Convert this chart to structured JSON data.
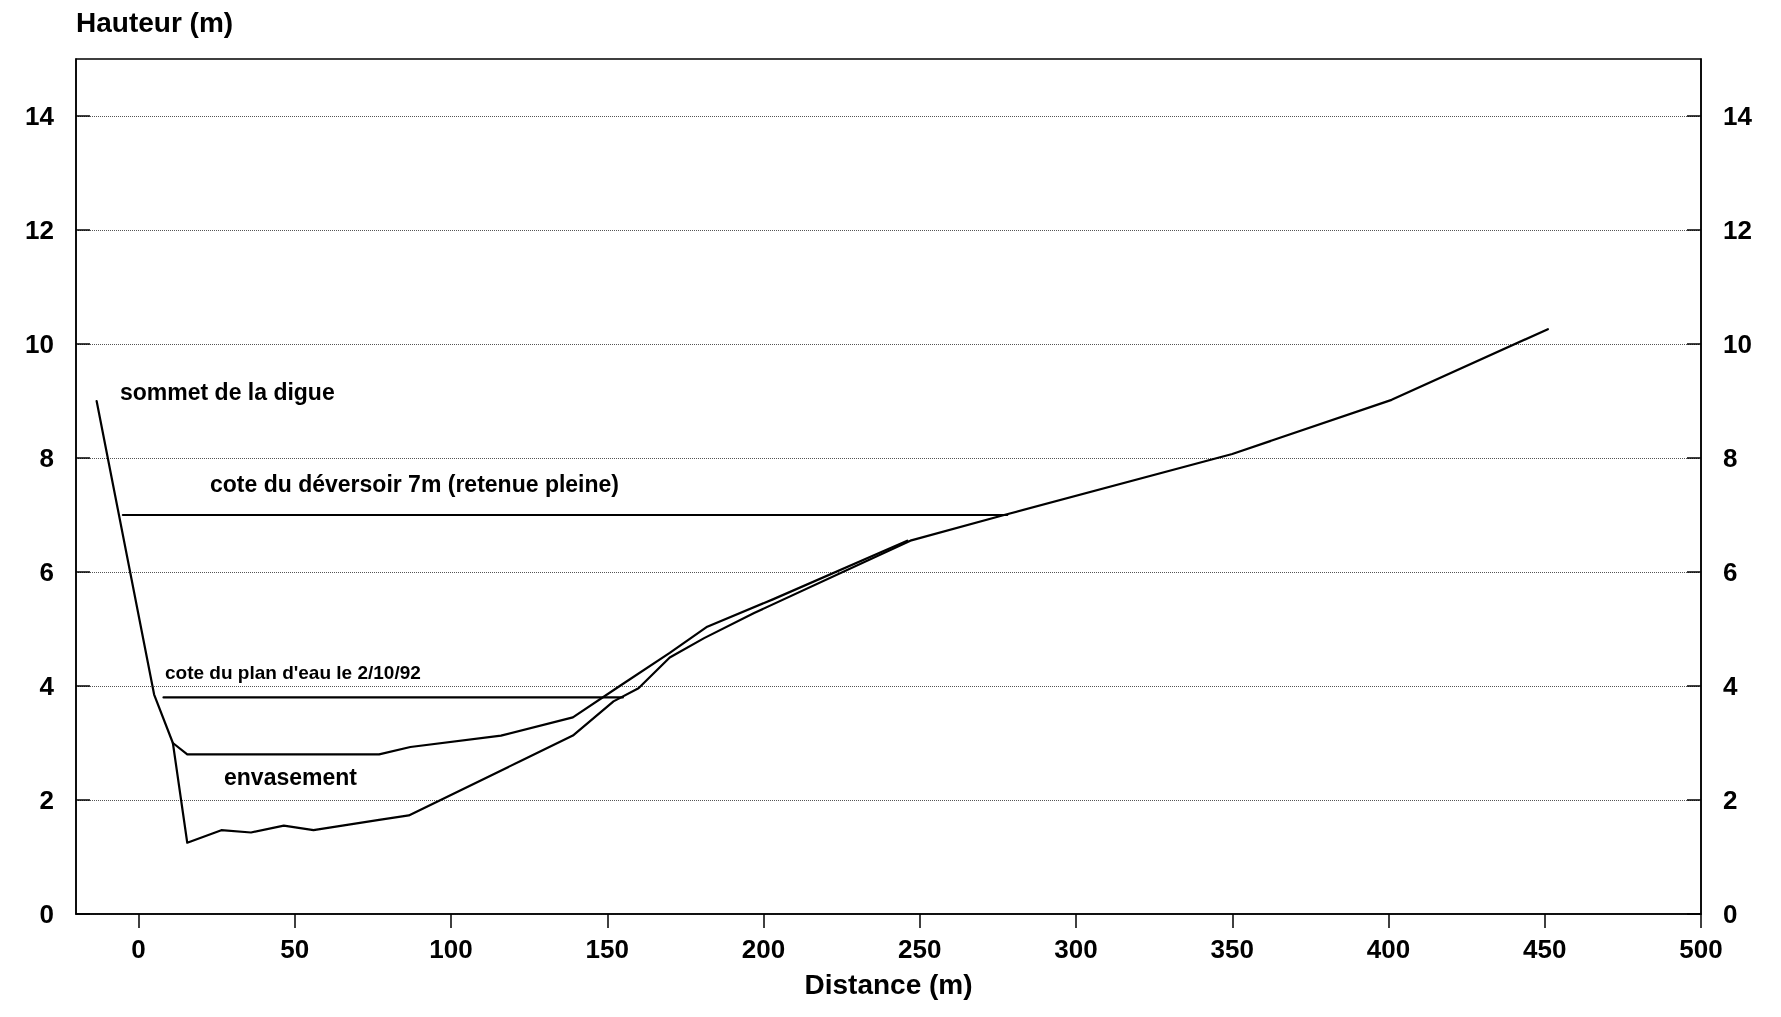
{
  "chart_data": {
    "type": "line",
    "xlabel": "Distance (m)",
    "ylabel": "Hauteur (m)",
    "xlim": [
      -20,
      500
    ],
    "xticks": [
      0,
      50,
      100,
      150,
      200,
      250,
      300,
      350,
      400,
      450,
      500
    ],
    "ylim": [
      0,
      15
    ],
    "yticks": [
      0,
      2,
      4,
      6,
      8,
      10,
      12,
      14
    ],
    "y2lim": [
      0,
      15
    ],
    "y2ticks": [
      0,
      2,
      4,
      6,
      8,
      10,
      12,
      14
    ],
    "grid": "y",
    "marker": "none",
    "line_style": "solid",
    "series": [
      {
        "color": "#000000",
        "x": [
          -13.4,
          5,
          11,
          15.6,
          26.5,
          36,
          46.5,
          56,
          77,
          86.5,
          139,
          152,
          160,
          170,
          181,
          197,
          247,
          277,
          350,
          401,
          451
        ],
        "values": [
          9.0,
          3.85,
          3.0,
          1.25,
          1.47,
          1.43,
          1.55,
          1.47,
          1.65,
          1.73,
          3.13,
          3.73,
          3.96,
          4.5,
          4.84,
          5.28,
          6.55,
          7.0,
          8.07,
          9.02,
          10.26
        ]
      },
      {
        "color": "#000000",
        "x": [
          11,
          15.6,
          77,
          87,
          116,
          139,
          154,
          170,
          182,
          203,
          246
        ],
        "values": [
          3.0,
          2.8,
          2.8,
          2.93,
          3.13,
          3.45,
          4.0,
          4.58,
          5.04,
          5.52,
          6.55
        ]
      },
      {
        "color": "#000000",
        "x": [
          -5,
          278
        ],
        "values": [
          7,
          7
        ]
      },
      {
        "color": "#000000",
        "x": [
          8,
          155
        ],
        "values": [
          3.8,
          3.8
        ]
      }
    ],
    "annotations": [
      "sommet de la digue",
      "cote du déversoir 7m (retenue pleine)",
      "cote du plan d'eau le 2/10/92",
      "envasement"
    ]
  }
}
